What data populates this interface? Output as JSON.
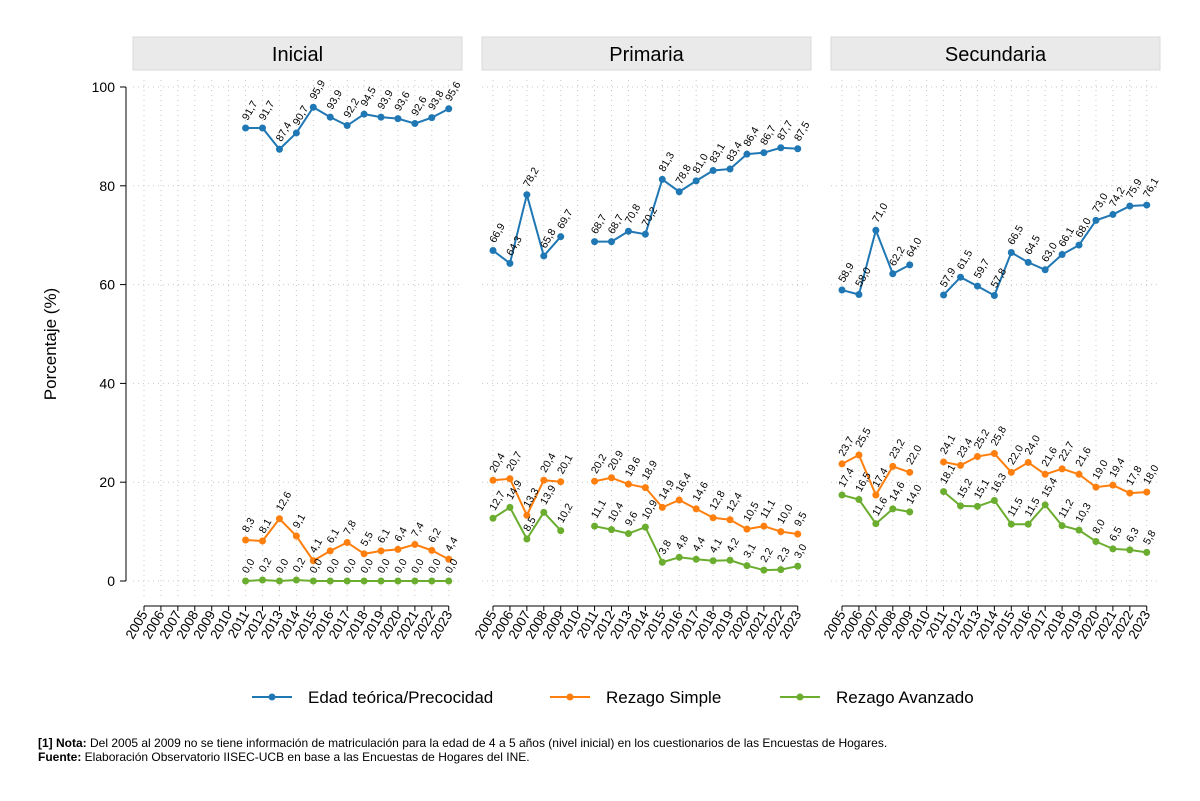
{
  "chart_data": {
    "type": "line",
    "ylabel": "Porcentaje (%)",
    "xlabel": "",
    "ylim": [
      0,
      100
    ],
    "yticks": [
      0,
      20,
      40,
      60,
      80,
      100
    ],
    "years": [
      "2005",
      "2006",
      "2007",
      "2008",
      "2009",
      "2010",
      "2011",
      "2012",
      "2013",
      "2014",
      "2015",
      "2016",
      "2017",
      "2018",
      "2019",
      "2020",
      "2021",
      "2022",
      "2023"
    ],
    "colors": {
      "Edad teórica/Precocidad": "#1f77b4",
      "Rezago Simple": "#ff7f0e",
      "Rezago Avanzado": "#6aad2f"
    },
    "legend": [
      "Edad teórica/Precocidad",
      "Rezago Simple",
      "Rezago Avanzado"
    ],
    "panels": [
      {
        "title": "Inicial",
        "series": [
          {
            "name": "Edad teórica/Precocidad",
            "values": [
              null,
              null,
              null,
              null,
              null,
              null,
              91.7,
              91.7,
              87.4,
              90.7,
              95.9,
              93.9,
              92.2,
              94.5,
              93.9,
              93.6,
              92.6,
              93.8,
              95.6
            ],
            "labels": [
              "",
              "",
              "",
              "",
              "",
              "",
              "91,7",
              "91,7",
              "87,4",
              "90,7",
              "95,9",
              "93,9",
              "92,2",
              "94,5",
              "93,9",
              "93,6",
              "92,6",
              "93,8",
              "95,6"
            ]
          },
          {
            "name": "Rezago Simple",
            "values": [
              null,
              null,
              null,
              null,
              null,
              null,
              8.3,
              8.1,
              12.6,
              9.1,
              4.1,
              6.1,
              7.8,
              5.5,
              6.1,
              6.4,
              7.4,
              6.2,
              4.4
            ],
            "labels": [
              "",
              "",
              "",
              "",
              "",
              "",
              "8,3",
              "8,1",
              "12,6",
              "9,1",
              "4,1",
              "6,1",
              "7,8",
              "5,5",
              "6,1",
              "6,4",
              "7,4",
              "6,2",
              "4,4"
            ]
          },
          {
            "name": "Rezago Avanzado",
            "values": [
              null,
              null,
              null,
              null,
              null,
              null,
              0.0,
              0.2,
              0.0,
              0.2,
              0.0,
              0.0,
              0.0,
              0.0,
              0.0,
              0.0,
              0.0,
              0.0,
              0.0
            ],
            "labels": [
              "",
              "",
              "",
              "",
              "",
              "",
              "0,0",
              "0,2",
              "0,0",
              "0,2",
              "0,0",
              "0,0",
              "0,0",
              "0,0",
              "0,0",
              "0,0",
              "0,0",
              "0,0",
              "0,0"
            ]
          }
        ]
      },
      {
        "title": "Primaria",
        "series": [
          {
            "name": "Edad teórica/Precocidad",
            "values": [
              66.9,
              64.3,
              78.2,
              65.8,
              69.7,
              null,
              68.7,
              68.7,
              70.8,
              70.2,
              81.3,
              78.8,
              81.0,
              83.1,
              83.4,
              86.4,
              86.7,
              87.7,
              87.5
            ],
            "labels": [
              "66,9",
              "64,3",
              "78,2",
              "65,8",
              "69,7",
              "",
              "68,7",
              "68,7",
              "70,8",
              "70,2",
              "81,3",
              "78,8",
              "81,0",
              "83,1",
              "83,4",
              "86,4",
              "86,7",
              "87,7",
              "87,5"
            ]
          },
          {
            "name": "Rezago Simple",
            "values": [
              20.4,
              20.7,
              13.3,
              20.4,
              20.1,
              null,
              20.2,
              20.9,
              19.6,
              18.9,
              14.9,
              16.4,
              14.6,
              12.8,
              12.4,
              10.5,
              11.1,
              10.0,
              9.5
            ],
            "labels": [
              "20,4",
              "20,7",
              "13,3",
              "20,4",
              "20,1",
              "",
              "20,2",
              "20,9",
              "19,6",
              "18,9",
              "14,9",
              "16,4",
              "14,6",
              "12,8",
              "12,4",
              "10,5",
              "11,1",
              "10,0",
              "9,5"
            ]
          },
          {
            "name": "Rezago Avanzado",
            "values": [
              12.7,
              14.9,
              8.5,
              13.9,
              10.2,
              null,
              11.1,
              10.4,
              9.6,
              10.9,
              3.8,
              4.8,
              4.4,
              4.1,
              4.2,
              3.1,
              2.2,
              2.3,
              3.0
            ],
            "labels": [
              "12,7",
              "14,9",
              "8,5",
              "13,9",
              "10,2",
              "",
              "11,1",
              "10,4",
              "9,6",
              "10,9",
              "3,8",
              "4,8",
              "4,4",
              "4,1",
              "4,2",
              "3,1",
              "2,2",
              "2,3",
              "3,0"
            ]
          }
        ]
      },
      {
        "title": "Secundaria",
        "series": [
          {
            "name": "Edad teórica/Precocidad",
            "values": [
              58.9,
              58.0,
              71.0,
              62.2,
              64.0,
              null,
              57.9,
              61.5,
              59.7,
              57.8,
              66.5,
              64.5,
              63.0,
              66.1,
              68.0,
              73.0,
              74.2,
              75.9,
              76.1
            ],
            "labels": [
              "58,9",
              "58,0",
              "71,0",
              "62,2",
              "64,0",
              "",
              "57,9",
              "61,5",
              "59,7",
              "57,8",
              "66,5",
              "64,5",
              "63,0",
              "66,1",
              "68,0",
              "73,0",
              "74,2",
              "75,9",
              "76,1"
            ]
          },
          {
            "name": "Rezago Simple",
            "values": [
              23.7,
              25.5,
              17.4,
              23.2,
              22.0,
              null,
              24.1,
              23.4,
              25.2,
              25.8,
              22.0,
              24.0,
              21.6,
              22.7,
              21.6,
              19.0,
              19.4,
              17.8,
              18.0
            ],
            "labels": [
              "23,7",
              "25,5",
              "17,4",
              "23,2",
              "22,0",
              "",
              "24,1",
              "23,4",
              "25,2",
              "25,8",
              "22,0",
              "24,0",
              "21,6",
              "22,7",
              "21,6",
              "19,0",
              "19,4",
              "17,8",
              "18,0"
            ]
          },
          {
            "name": "Rezago Avanzado",
            "values": [
              17.4,
              16.5,
              11.6,
              14.6,
              14.0,
              null,
              18.1,
              15.2,
              15.1,
              16.3,
              11.5,
              11.5,
              15.4,
              11.2,
              10.3,
              8.0,
              6.5,
              6.3,
              5.8
            ],
            "labels": [
              "17,4",
              "16,5",
              "11,6",
              "14,6",
              "14,0",
              "",
              "18,1",
              "15,2",
              "15,1",
              "16,3",
              "11,5",
              "11,5",
              "15,4",
              "11,2",
              "10,3",
              "8,0",
              "6,5",
              "6,3",
              "5,8"
            ]
          }
        ]
      }
    ]
  },
  "notes": {
    "nota_label": "[1] Nota:",
    "nota_text": " Del 2005 al 2009 no se tiene información de matriculación para la edad de 4 a 5 años (nivel inicial) en los cuestionarios de las Encuestas de Hogares.",
    "fuente_label": "Fuente:",
    "fuente_text": " Elaboración Observatorio IISEC-UCB en base a las Encuestas de Hogares del INE."
  }
}
